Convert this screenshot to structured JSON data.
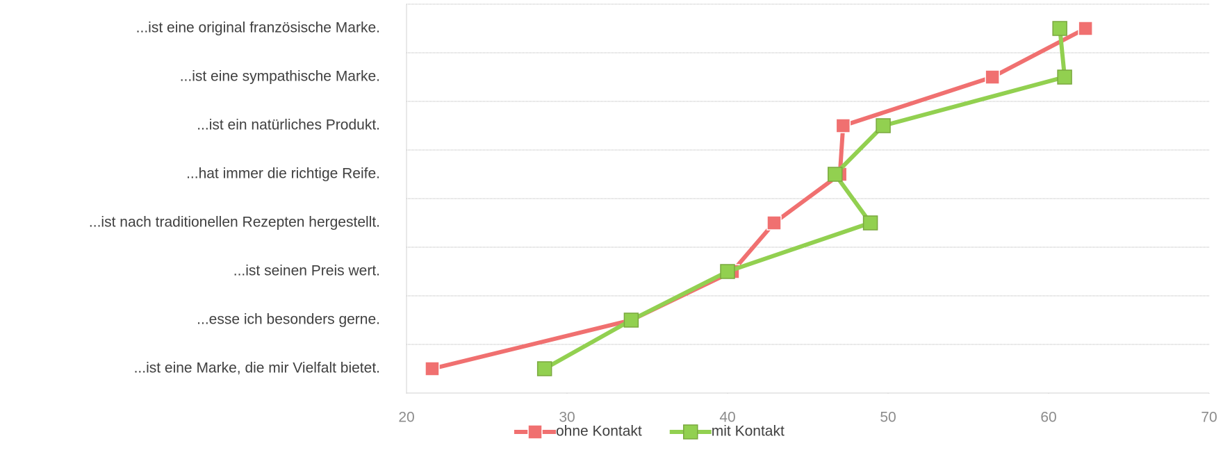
{
  "chart_data": {
    "type": "line",
    "orientation": "horizontal",
    "categories": [
      "...ist eine original französische Marke.",
      "...ist eine sympathische Marke.",
      "...ist ein natürliches Produkt.",
      "...hat immer die richtige Reife.",
      "...ist nach traditionellen Rezepten hergestellt.",
      "...ist seinen Preis wert.",
      "...esse ich besonders gerne.",
      "...ist eine Marke, die mir Vielfalt bietet."
    ],
    "series": [
      {
        "name": "ohne Kontakt",
        "color": "#f07070",
        "values": [
          62.3,
          56.5,
          47.2,
          47.0,
          42.9,
          40.3,
          34.0,
          21.6
        ]
      },
      {
        "name": "mit Kontakt",
        "color": "#92d050",
        "values": [
          60.7,
          61.0,
          49.7,
          46.7,
          48.9,
          40.0,
          34.0,
          28.6
        ]
      }
    ],
    "xlim": [
      20,
      70
    ],
    "xticks": [
      20,
      30,
      40,
      50,
      60,
      70
    ],
    "grid": true,
    "legend": "bottom"
  }
}
